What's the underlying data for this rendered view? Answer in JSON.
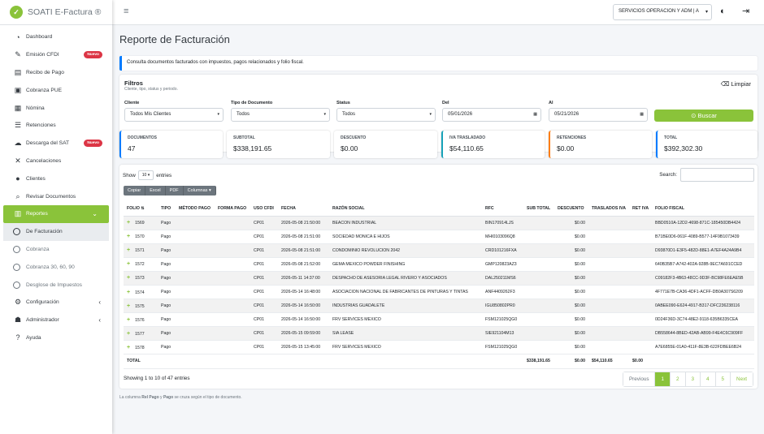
{
  "brand": {
    "name": "SOATI E-Factura ®"
  },
  "sidebar": {
    "items": [
      {
        "label": "Dashboard",
        "icon": "dashboard-icon"
      },
      {
        "label": "Emisión CFDI",
        "icon": "edit-icon",
        "badge": "Nuevo"
      },
      {
        "label": "Recibo de Pago",
        "icon": "receipt-icon"
      },
      {
        "label": "Cobranza PUE",
        "icon": "cash-icon"
      },
      {
        "label": "Nómina",
        "icon": "payroll-icon"
      },
      {
        "label": "Retenciones",
        "icon": "list-icon"
      },
      {
        "label": "Descarga del SAT",
        "icon": "cloud-download-icon",
        "badge": "Nuevo"
      },
      {
        "label": "Cancelaciones",
        "icon": "close-icon"
      },
      {
        "label": "Clientes",
        "icon": "user-icon"
      },
      {
        "label": "Revisar Documentos",
        "icon": "search-icon"
      },
      {
        "label": "Reportes",
        "icon": "chart-icon"
      },
      {
        "label": "De Facturación"
      },
      {
        "label": "Cobranza"
      },
      {
        "label": "Cobranza 30, 60, 90"
      },
      {
        "label": "Desglose de Impuestos"
      },
      {
        "label": "Configuración",
        "icon": "gear-icon"
      },
      {
        "label": "Administrador",
        "icon": "admin-icon"
      },
      {
        "label": "Ayuda",
        "icon": "help-icon"
      }
    ]
  },
  "topbar": {
    "company": "SERVICIOS OPERACION Y ADM | A"
  },
  "page": {
    "title": "Reporte de Facturación",
    "info": "Consulta documentos facturados con impuestos, pagos relacionados y folio fiscal."
  },
  "filters": {
    "title": "Filtros",
    "subtitle": "Cliente, tipo, status y periodo.",
    "clear": "Limpiar",
    "cliente_label": "Cliente",
    "cliente_value": "Todos Mis Clientes",
    "tipo_label": "Tipo de Documento",
    "tipo_value": "Todos",
    "status_label": "Status",
    "status_value": "Todos",
    "del_label": "Del",
    "del_value": "05/01/2026",
    "al_label": "Al",
    "al_value": "05/21/2026",
    "search": "Buscar"
  },
  "cards": [
    {
      "label": "DOCUMENTOS",
      "value": "47"
    },
    {
      "label": "SUBTOTAL",
      "value": "$338,191.65"
    },
    {
      "label": "DESCUENTO",
      "value": "$0.00"
    },
    {
      "label": "IVA TRASLADADO",
      "value": "$54,110.65"
    },
    {
      "label": "RETENCIONES",
      "value": "$0.00"
    },
    {
      "label": "TOTAL",
      "value": "$392,302.30"
    }
  ],
  "table": {
    "show": "Show",
    "entries": "entries",
    "page_size": "10",
    "search": "Search:",
    "buttons": [
      "Copiar",
      "Excel",
      "PDF",
      "Columnas ▾"
    ],
    "headers": [
      "FOLIO",
      "TIPO",
      "MÉTODO PAGO",
      "FORMA PAGO",
      "USO CFDI",
      "FECHA",
      "RAZÓN SOCIAL",
      "RFC",
      "SUB TOTAL",
      "DESCUENTO",
      "TRASLADOS IVA",
      "RET IVA",
      "FOLIO FISCAL"
    ],
    "rows": [
      {
        "folio": "1569",
        "tipo": "Pago",
        "uso": "CP01",
        "fecha": "2026-05-08 21:50:00",
        "razon": "BEACON INDUSTRIAL",
        "rfc": "BIN170914LJS",
        "desc": "$0.00",
        "uuid": "BBD0510A-12D2-4698-871C-185450DB4424"
      },
      {
        "folio": "1570",
        "tipo": "Pago",
        "uso": "CP01",
        "fecha": "2026-05-08 21:51:00",
        "razon": "SOCIEDAD MONICA E HIJOS",
        "rfc": "MHI0103096Q8",
        "desc": "$0.00",
        "uuid": "B71BE0D6-061F-4089-B577-14F9B1073439"
      },
      {
        "folio": "1571",
        "tipo": "Pago",
        "uso": "CP01",
        "fecha": "2026-05-08 21:51:00",
        "razon": "CONDOMINIO REVOLUCION 2042",
        "rfc": "CRD101216FXA",
        "desc": "$0.00",
        "uuid": "D93870D1-E3F5-482D-88E1-A7EF4A24A9B4"
      },
      {
        "folio": "1572",
        "tipo": "Pago",
        "uso": "CP01",
        "fecha": "2026-05-08 21:52:00",
        "razon": "GEMA MEXICO POWDER FINISHING",
        "rfc": "GMP120823AZ3",
        "desc": "$0.00",
        "uuid": "640B35B7-A742-402A-928B-9EC7A691CCED"
      },
      {
        "folio": "1573",
        "tipo": "Pago",
        "uso": "CP01",
        "fecha": "2026-05-11 14:37:00",
        "razon": "DESPACHO DE ASESORIA LEGAL RIVERO Y ASOCIADOS",
        "rfc": "DAL250211MS6",
        "desc": "$0.00",
        "uuid": "C09182F3-4B63-48CC-9D3F-BC98FE6EAE5B"
      },
      {
        "folio": "1574",
        "tipo": "Pago",
        "uso": "CP01",
        "fecha": "2026-05-14 16:48:00",
        "razon": "ASOCIACION NACIONAL DE FABRICANTES DE PINTURAS Y TINTAS",
        "rfc": "ANF4409262F3",
        "desc": "$0.00",
        "uuid": "4F771E7B-CA36-4DF1-ACFF-DB0A307S6209"
      },
      {
        "folio": "1575",
        "tipo": "Pago",
        "uso": "CP01",
        "fecha": "2026-05-14 16:50:00",
        "razon": "INDUSTRIAS GUADALETE",
        "rfc": "IGU850802PR0",
        "desc": "$0.00",
        "uuid": "0ABEE090-E624-4917-B317-DFC236238116"
      },
      {
        "folio": "1576",
        "tipo": "Pago",
        "uso": "CP01",
        "fecha": "2026-05-14 16:50:00",
        "razon": "FRV SERVICES MEXICO",
        "rfc": "FSM121025QG0",
        "desc": "$0.00",
        "uuid": "0D24F36D-3C74-48E2-9118-635B6335CEA"
      },
      {
        "folio": "1577",
        "tipo": "Pago",
        "uso": "CP01",
        "fecha": "2026-05-15 09:59:00",
        "razon": "SIA LEASE",
        "rfc": "SIE921104M13",
        "desc": "$0.00",
        "uuid": "DB558644-8BED-42AB-AB99-F4E4C6C909FF"
      },
      {
        "folio": "1578",
        "tipo": "Pago",
        "uso": "CP01",
        "fecha": "2026-05-15 13:45:00",
        "razon": "FRV SERVICES MEXICO",
        "rfc": "FSM121025QG0",
        "desc": "$0.00",
        "uuid": "A7E6855E-01A0-411F-8E3B-622FDBEE6B24"
      }
    ],
    "total": {
      "label": "TOTAL",
      "subtotal": "$338,191.65",
      "desc": "$0.00",
      "iva": "$54,110.65",
      "ret": "$0.00"
    },
    "info": "Showing 1 to 10 of 47 entries",
    "pager": [
      "Previous",
      "1",
      "2",
      "3",
      "4",
      "5",
      "Next"
    ]
  },
  "footnote": {
    "a": "La columna ",
    "b": "Rel Pago",
    "c": " y ",
    "d": "Pago",
    "e": " se cruza según el tipo de documento."
  }
}
